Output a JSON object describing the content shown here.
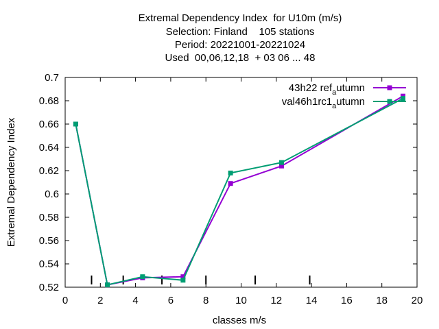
{
  "chart_data": {
    "type": "line",
    "title_lines": [
      "Extremal Dependency Index  for U10m (m/s)",
      "Selection: Finland    105 stations",
      "Period: 20221001-20221024",
      "Used  00,06,12,18  + 03 06 ... 48"
    ],
    "xlabel": "classes m/s",
    "ylabel": "Extremal Dependency Index",
    "xlim": [
      0,
      20
    ],
    "ylim": [
      0.52,
      0.7
    ],
    "xticks": [
      0,
      2,
      4,
      6,
      8,
      10,
      12,
      14,
      16,
      18,
      20
    ],
    "yticks": [
      0.52,
      0.54,
      0.56,
      0.58,
      0.6,
      0.62,
      0.64,
      0.66,
      0.68,
      0.7
    ],
    "class_marks": [
      1.5,
      3.3,
      5.5,
      8.0,
      10.8,
      13.9
    ],
    "grid": false,
    "legend_position": "top-right",
    "series": [
      {
        "name_main": "43h22",
        "name_parts": [
          {
            "text": "43h22 ",
            "sub": false
          },
          {
            "text": "r",
            "sub": false
          },
          {
            "text": "ef",
            "sub": false
          },
          {
            "text": "a",
            "sub": true
          },
          {
            "text": "utumn",
            "sub": false
          }
        ],
        "color": "#9400d3",
        "x": [
          0.6,
          2.4,
          4.4,
          6.7,
          9.4,
          12.3,
          19.2
        ],
        "values": [
          0.66,
          0.522,
          0.528,
          0.529,
          0.609,
          0.624,
          0.684
        ]
      },
      {
        "name_parts": [
          {
            "text": "val46h1rc1",
            "sub": false
          },
          {
            "text": "a",
            "sub": true
          },
          {
            "text": "utumn",
            "sub": false
          }
        ],
        "color": "#009e73",
        "x": [
          0.6,
          2.4,
          4.4,
          6.7,
          9.4,
          12.3,
          19.2
        ],
        "values": [
          0.66,
          0.522,
          0.529,
          0.526,
          0.618,
          0.627,
          0.682
        ]
      }
    ]
  }
}
